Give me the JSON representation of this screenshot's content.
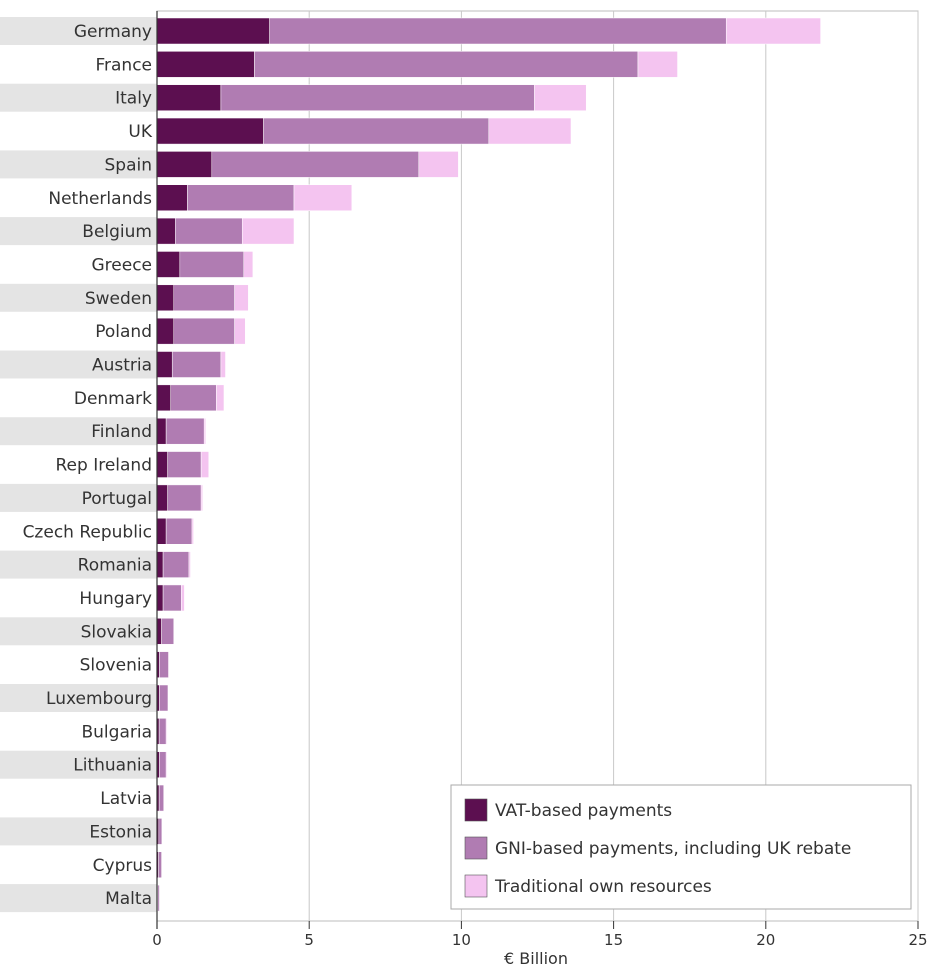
{
  "chart_data": {
    "type": "bar",
    "orientation": "horizontal",
    "stacked": true,
    "categories": [
      "Germany",
      "France",
      "Italy",
      "UK",
      "Spain",
      "Netherlands",
      "Belgium",
      "Greece",
      "Sweden",
      "Poland",
      "Austria",
      "Denmark",
      "Finland",
      "Rep Ireland",
      "Portugal",
      "Czech Republic",
      "Romania",
      "Hungary",
      "Slovakia",
      "Slovenia",
      "Luxembourg",
      "Bulgaria",
      "Lithuania",
      "Latvia",
      "Estonia",
      "Cyprus",
      "Malta"
    ],
    "series": [
      {
        "name": "VAT-based payments",
        "color": "#5c0f50",
        "values": [
          3.7,
          3.2,
          2.1,
          3.5,
          1.8,
          1.0,
          0.6,
          0.75,
          0.55,
          0.55,
          0.5,
          0.45,
          0.3,
          0.35,
          0.35,
          0.3,
          0.2,
          0.2,
          0.15,
          0.08,
          0.08,
          0.07,
          0.08,
          0.07,
          0.06,
          0.05,
          0.03
        ]
      },
      {
        "name": "GNI-based payments, including UK rebate",
        "color": "#b07cb2",
        "values": [
          15.0,
          12.6,
          10.3,
          7.4,
          6.8,
          3.5,
          2.2,
          2.1,
          2.0,
          2.0,
          1.6,
          1.5,
          1.25,
          1.1,
          1.1,
          0.85,
          0.85,
          0.6,
          0.4,
          0.3,
          0.28,
          0.23,
          0.22,
          0.15,
          0.1,
          0.1,
          0.05
        ]
      },
      {
        "name": "Traditional own resources",
        "color": "#f4c4f0",
        "values": [
          3.1,
          1.3,
          1.7,
          2.7,
          1.3,
          1.9,
          1.7,
          0.3,
          0.45,
          0.35,
          0.15,
          0.25,
          0.05,
          0.25,
          0.05,
          0.05,
          0.05,
          0.1,
          0.0,
          0.02,
          0.0,
          0.03,
          0.03,
          0.0,
          0.0,
          0.0,
          0.0
        ]
      }
    ],
    "xlim": [
      0,
      25
    ],
    "xticks": [
      "0",
      "5",
      "10",
      "15",
      "20",
      "25"
    ],
    "xlabel": "€ Billion",
    "ylabel": "",
    "title": "",
    "grid": "vertical",
    "legend_position": "bottom-right"
  }
}
